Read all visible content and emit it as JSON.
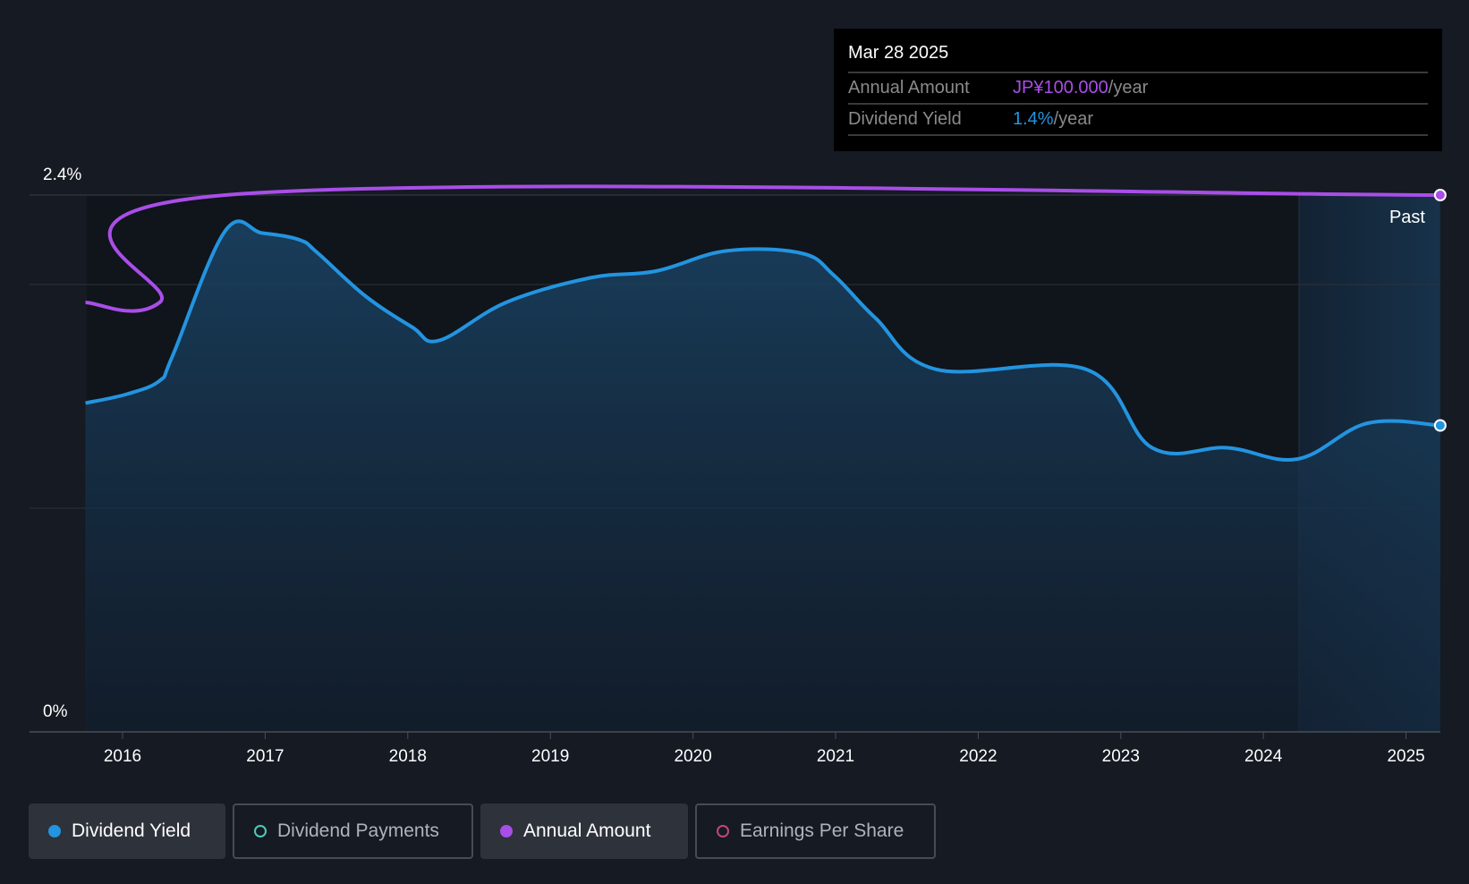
{
  "chart_data": {
    "type": "line",
    "title": "",
    "y_axis": {
      "min": 0,
      "max": 2.4,
      "ticks": [
        "0%",
        "2.4%"
      ],
      "unit": "%"
    },
    "x_ticks": [
      "2016",
      "2017",
      "2018",
      "2019",
      "2020",
      "2021",
      "2022",
      "2023",
      "2024",
      "2025"
    ],
    "past_label": "Past",
    "past_start": 2024.25,
    "series": [
      {
        "name": "Dividend Yield",
        "unit": "%",
        "color": "#2394e0",
        "x": [
          2015.74,
          2016.03,
          2016.26,
          2016.35,
          2016.72,
          2016.98,
          2017.24,
          2017.37,
          2017.7,
          2018.03,
          2018.22,
          2018.69,
          2019.28,
          2019.74,
          2020.23,
          2020.76,
          2020.99,
          2021.28,
          2021.71,
          2022.76,
          2023.22,
          2023.75,
          2024.24,
          2024.73,
          2025.24
        ],
        "y": [
          1.47,
          1.51,
          1.57,
          1.68,
          2.24,
          2.23,
          2.2,
          2.14,
          1.95,
          1.81,
          1.75,
          1.92,
          2.03,
          2.06,
          2.15,
          2.14,
          2.04,
          1.85,
          1.62,
          1.62,
          1.27,
          1.27,
          1.22,
          1.38,
          1.37
        ]
      },
      {
        "name": "Annual Amount",
        "unit": "JPY",
        "color": "#a94ee8",
        "x": [
          2015.74,
          2016.26,
          2016.72,
          2025.24
        ],
        "y": [
          80,
          80,
          100,
          100
        ]
      }
    ]
  },
  "tooltip": {
    "date": "Mar 28 2025",
    "rows": [
      {
        "label": "Annual Amount",
        "value": "JP¥100.000",
        "suffix": "/year",
        "color": "#a94ee8"
      },
      {
        "label": "Dividend Yield",
        "value": "1.4%",
        "suffix": "/year",
        "color": "#2394e0"
      }
    ]
  },
  "legend": [
    {
      "label": "Dividend Yield",
      "active": true,
      "color": "#2394e0"
    },
    {
      "label": "Dividend Payments",
      "active": false,
      "color": "#4fc9bd"
    },
    {
      "label": "Annual Amount",
      "active": true,
      "color": "#a94ee8"
    },
    {
      "label": "Earnings Per Share",
      "active": false,
      "color": "#c2457f"
    }
  ]
}
